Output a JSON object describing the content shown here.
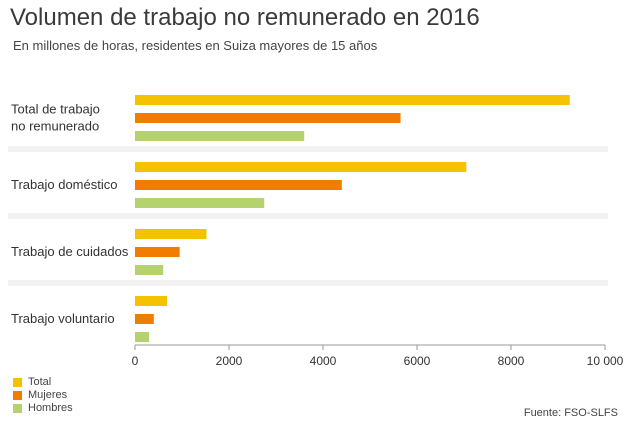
{
  "title": "Volumen de trabajo no remunerado en 2016",
  "subtitle": "En millones de horas, residentes en Suiza mayores de 15 años",
  "source": "Fuente: FSO-SLFS",
  "colors": {
    "Total": "#f5c200",
    "Mujeres": "#f07d00",
    "Hombres": "#b5d26e"
  },
  "legend": [
    {
      "label": "Total",
      "color": "#f5c200"
    },
    {
      "label": "Mujeres",
      "color": "#f07d00"
    },
    {
      "label": "Hombres",
      "color": "#b5d26e"
    }
  ],
  "chart_data": {
    "type": "bar",
    "orientation": "horizontal",
    "title": "Volumen de trabajo no remunerado en 2016",
    "subtitle": "En millones de horas, residentes en Suiza mayores de 15 años",
    "categories": [
      [
        "Total de trabajo",
        "no remunerado"
      ],
      [
        "Trabajo doméstico"
      ],
      [
        "Trabajo de cuidados"
      ],
      [
        "Trabajo voluntario"
      ]
    ],
    "series": [
      {
        "name": "Total",
        "values": [
          9250,
          7050,
          1520,
          680
        ]
      },
      {
        "name": "Mujeres",
        "values": [
          5650,
          4400,
          950,
          400
        ]
      },
      {
        "name": "Hombres",
        "values": [
          3600,
          2750,
          600,
          300
        ]
      }
    ],
    "xlim": [
      0,
      10000
    ],
    "xticks": [
      0,
      2000,
      4000,
      6000,
      8000,
      10000
    ],
    "xtick_labels": [
      "0",
      "2000",
      "4000",
      "6000",
      "8000",
      "10 000"
    ],
    "legend_position": "bottom-left",
    "grid": false
  }
}
